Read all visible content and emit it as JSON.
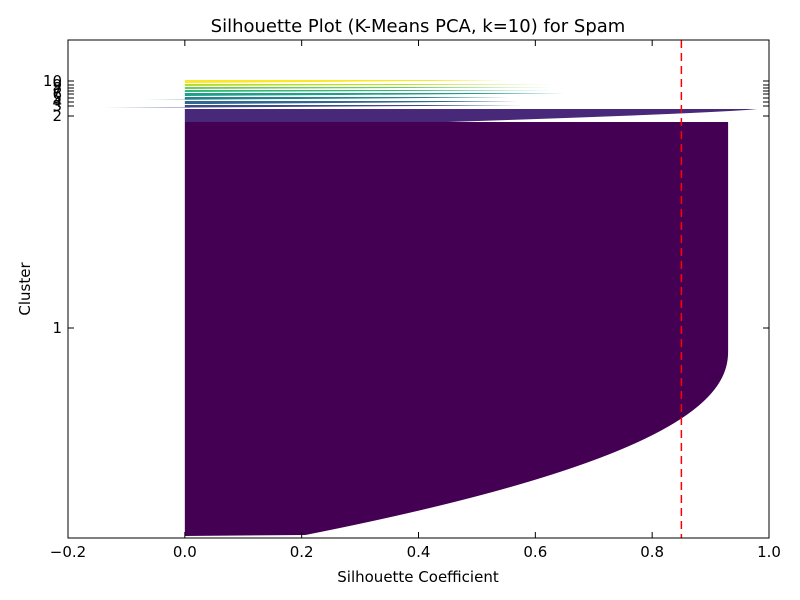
{
  "chart_data": {
    "type": "bar",
    "title": "Silhouette Plot (K-Means PCA, k=10) for Spam",
    "xlabel": "Silhouette Coefficient",
    "ylabel": "Cluster",
    "xlim": [
      -0.2,
      1.0
    ],
    "xticks": [
      -0.2,
      0.0,
      0.2,
      0.4,
      0.6,
      0.8,
      1.0
    ],
    "xtick_labels": [
      "−0.2",
      "0.0",
      "0.2",
      "0.4",
      "0.6",
      "0.8",
      "1.0"
    ],
    "grid": false,
    "reference_line": {
      "value": 0.85,
      "color": "#ff0000",
      "style": "dashed"
    },
    "clusters": [
      {
        "label": "1",
        "color": "#440154",
        "max_silhouette": 0.93,
        "min_silhouette": 0.0
      },
      {
        "label": "2",
        "color": "#482878",
        "max_silhouette": 0.98,
        "min_silhouette": 0.45
      },
      {
        "label": "3",
        "color": "#3e4989",
        "max_silhouette": 0.58,
        "min_silhouette": -0.14
      },
      {
        "label": "4",
        "color": "#31688e",
        "max_silhouette": 0.57,
        "min_silhouette": 0.04
      },
      {
        "label": "5",
        "color": "#26828e",
        "max_silhouette": 0.56,
        "min_silhouette": -0.07
      },
      {
        "label": "6",
        "color": "#1f9e89",
        "max_silhouette": 0.65,
        "min_silhouette": 0.0
      },
      {
        "label": "7",
        "color": "#35b779",
        "max_silhouette": 0.63,
        "min_silhouette": 0.0
      },
      {
        "label": "8",
        "color": "#6ece58",
        "max_silhouette": 0.63,
        "min_silhouette": 0.0
      },
      {
        "label": "9",
        "color": "#b5de2b",
        "max_silhouette": 0.63,
        "min_silhouette": 0.0
      },
      {
        "label": "10",
        "color": "#fde725",
        "max_silhouette": 0.55,
        "min_silhouette": 0.0
      }
    ]
  }
}
